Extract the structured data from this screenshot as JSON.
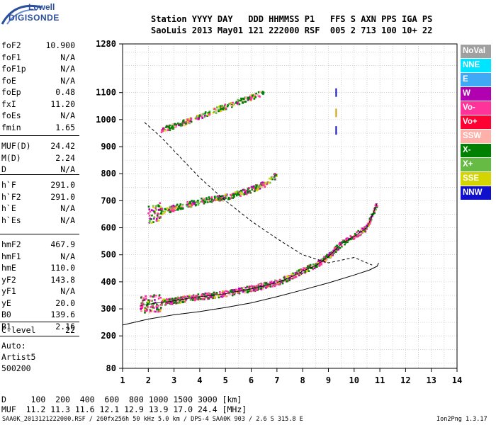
{
  "logo": {
    "line1": "Lowell",
    "line2": "DIGISONDE"
  },
  "header": {
    "line1": "Station YYYY DAY   DDD HHMMSS P1   FFS S AXN PPS IGA PS",
    "line2": "SaoLuis 2013 May01 121 222000 RSF  005 2 713 100 10+ 22"
  },
  "params": [
    {
      "name": "foF2",
      "value": "10.900"
    },
    {
      "name": "foF1",
      "value": "N/A"
    },
    {
      "name": "foF1p",
      "value": "N/A"
    },
    {
      "name": "foE",
      "value": "N/A"
    },
    {
      "name": "foEp",
      "value": "0.48"
    },
    {
      "name": "fxI",
      "value": "11.20"
    },
    {
      "name": "foEs",
      "value": "N/A"
    },
    {
      "name": "fmin",
      "value": "1.65"
    },
    {
      "name": "MUF(D)",
      "value": "24.42"
    },
    {
      "name": "M(D)",
      "value": "2.24"
    },
    {
      "name": "D",
      "value": "N/A"
    },
    {
      "name": "h`F",
      "value": "291.0"
    },
    {
      "name": "h`F2",
      "value": "291.0"
    },
    {
      "name": "h`E",
      "value": "N/A"
    },
    {
      "name": "h`Es",
      "value": "N/A"
    },
    {
      "name": "hmF2",
      "value": "467.9"
    },
    {
      "name": "hmF1",
      "value": "N/A"
    },
    {
      "name": "hmE",
      "value": "110.0"
    },
    {
      "name": "yF2",
      "value": "143.8"
    },
    {
      "name": "yF1",
      "value": "N/A"
    },
    {
      "name": "yE",
      "value": "20.0"
    },
    {
      "name": "B0",
      "value": "139.6"
    },
    {
      "name": "B1",
      "value": "2.16"
    },
    {
      "name": "C-level",
      "value": "22"
    }
  ],
  "autoscaling": {
    "line1": "Auto:",
    "line2": "Artist5",
    "line3": "500200"
  },
  "legend": [
    {
      "label": "NoVal",
      "color": "#a0a0a0"
    },
    {
      "label": "NNE",
      "color": "#00e5ff"
    },
    {
      "label": "E",
      "color": "#3fa9f5"
    },
    {
      "label": "W",
      "color": "#b000b0"
    },
    {
      "label": "Vo-",
      "color": "#ff3399"
    },
    {
      "label": "Vo+",
      "color": "#ff0033"
    },
    {
      "label": "SSW",
      "color": "#ffb0a8"
    },
    {
      "label": "X-",
      "color": "#008000"
    },
    {
      "label": "X+",
      "color": "#66bb44"
    },
    {
      "label": "SSE",
      "color": "#d4d400"
    },
    {
      "label": "NNW",
      "color": "#1010cc"
    }
  ],
  "muf_table": {
    "distance_row": "D     100  200  400  600  800 1000 1500 3000 [km]",
    "muf_row": "MUF  11.2 11.3 11.6 12.1 12.9 13.9 17.0 24.4 [MHz]"
  },
  "footer": {
    "left": "SAA0K_2013121222000.RSF / 260fx256h 50 kHz 5.0 km / DPS-4 SAA0K 903 / 2.6 S 315.8 E",
    "right": "Ion2Png 1.3.17"
  },
  "chart_data": {
    "type": "scatter",
    "xlim": [
      1,
      14
    ],
    "ylim": [
      80,
      1280
    ],
    "x_ticks": [
      1,
      2,
      3,
      4,
      5,
      6,
      7,
      8,
      9,
      10,
      11,
      12,
      13,
      14
    ],
    "y_ticks": [
      80,
      200,
      300,
      400,
      500,
      600,
      700,
      800,
      900,
      1000,
      1100,
      1280
    ],
    "grid": true,
    "profile_solid": [
      [
        1,
        240
      ],
      [
        2,
        262
      ],
      [
        3,
        278
      ],
      [
        4,
        290
      ],
      [
        5,
        305
      ],
      [
        6,
        322
      ],
      [
        7,
        345
      ],
      [
        8,
        370
      ],
      [
        9,
        396
      ],
      [
        10,
        425
      ],
      [
        10.6,
        444
      ],
      [
        10.9,
        458
      ],
      [
        10.95,
        470
      ]
    ],
    "profile_dashed": [
      [
        1.85,
        990
      ],
      [
        2.5,
        935
      ],
      [
        3,
        885
      ],
      [
        4,
        785
      ],
      [
        5,
        700
      ],
      [
        6,
        625
      ],
      [
        7,
        560
      ],
      [
        8,
        500
      ],
      [
        9,
        470
      ],
      [
        10,
        490
      ],
      [
        10.7,
        462
      ]
    ],
    "trace_o_f2": [
      [
        1.7,
        312
      ],
      [
        2.2,
        320
      ],
      [
        2.6,
        325
      ],
      [
        3,
        330
      ],
      [
        3.5,
        338
      ],
      [
        4,
        345
      ],
      [
        4.5,
        350
      ],
      [
        5,
        356
      ],
      [
        5.5,
        365
      ],
      [
        6,
        374
      ],
      [
        6.5,
        385
      ],
      [
        7,
        397
      ],
      [
        7.5,
        416
      ],
      [
        8,
        440
      ],
      [
        8.5,
        460
      ],
      [
        9,
        493
      ],
      [
        9.5,
        540
      ],
      [
        10,
        568
      ],
      [
        10.5,
        600
      ],
      [
        10.9,
        690
      ]
    ],
    "trace_multihop_2": [
      [
        2,
        648
      ],
      [
        3,
        672
      ],
      [
        4,
        697
      ],
      [
        5,
        712
      ],
      [
        6,
        740
      ],
      [
        6.5,
        760
      ],
      [
        7,
        795
      ]
    ],
    "trace_multihop_3": [
      [
        2.5,
        962
      ],
      [
        3,
        975
      ],
      [
        4,
        1010
      ],
      [
        5,
        1048
      ],
      [
        6,
        1082
      ],
      [
        6.5,
        1100
      ]
    ]
  }
}
